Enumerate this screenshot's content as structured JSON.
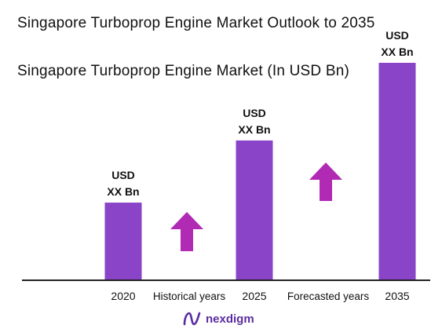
{
  "chart_data": {
    "type": "bar",
    "title": "Singapore Turboprop Engine Market Outlook to 2035",
    "subtitle": "Singapore Turboprop Engine Market (In USD Bn)",
    "categories": [
      "2020",
      "2025",
      "2035"
    ],
    "values": [
      1.0,
      1.8,
      2.8
    ],
    "data_labels": [
      {
        "line1": "USD",
        "line2": "XX Bn"
      },
      {
        "line1": "USD",
        "line2": "XX Bn"
      },
      {
        "line1": "USD",
        "line2": "XX Bn"
      }
    ],
    "ylim": [
      0,
      2.8
    ],
    "grid": false,
    "segment_labels": [
      "Historical years",
      "Forecasted years"
    ],
    "bar_color": "#8a44c8",
    "arrow_color": "#b02ab4"
  },
  "logo": {
    "text": "nexdigm",
    "icon": "nexdigm-logo-icon",
    "color": "#5a2ca0"
  }
}
